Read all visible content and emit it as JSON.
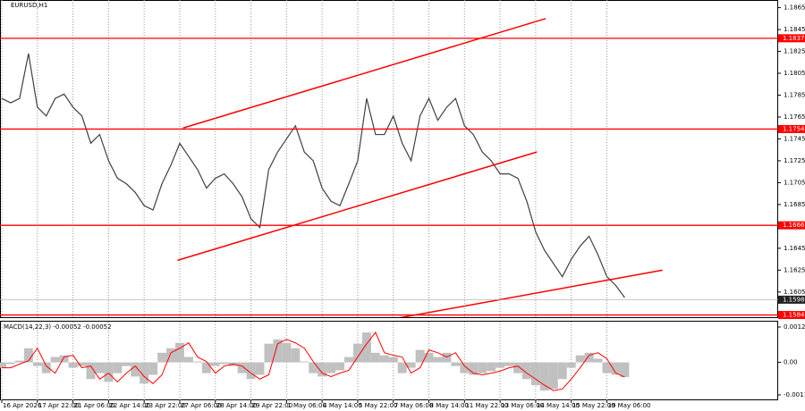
{
  "chart_data": [
    {
      "type": "line",
      "title": "EURUSD,H1",
      "x": [
        0,
        8,
        16,
        24,
        32,
        40,
        48,
        56,
        64,
        72,
        80,
        88,
        96,
        104,
        112,
        120,
        128,
        136,
        144,
        152,
        160,
        168,
        176,
        184,
        192,
        200,
        208,
        216,
        224,
        232,
        240,
        248,
        256,
        264,
        272,
        280,
        288,
        296,
        304,
        312,
        320,
        328,
        336,
        344,
        352,
        360,
        368,
        376,
        384,
        392,
        400,
        408,
        416,
        424,
        432,
        440,
        448,
        456,
        464,
        472,
        480,
        488,
        496,
        504,
        512,
        520,
        528,
        536,
        544,
        552,
        560
      ],
      "series": [
        {
          "color": "#404040",
          "values": [
            1.1782,
            1.1778,
            1.1782,
            1.1823,
            1.1774,
            1.1766,
            1.1782,
            1.1786,
            1.1774,
            1.1766,
            1.1741,
            1.1749,
            1.1725,
            1.1709,
            1.1704,
            1.1696,
            1.1684,
            1.168,
            1.1704,
            1.1721,
            1.1741,
            1.1729,
            1.1717,
            1.17,
            1.1709,
            1.1713,
            1.1704,
            1.1692,
            1.1672,
            1.1664,
            1.1717,
            1.1733,
            1.1745,
            1.1757,
            1.1733,
            1.1725,
            1.17,
            1.1688,
            1.1684,
            1.1704,
            1.1725,
            1.1782,
            1.1749,
            1.1749,
            1.1766,
            1.1741,
            1.1725,
            1.1766,
            1.1782,
            1.1762,
            1.1774,
            1.1782,
            1.1757,
            1.1749,
            1.1733,
            1.1725,
            1.1713,
            1.1713,
            1.1709,
            1.1688,
            1.166,
            1.1643,
            1.1631,
            1.1619,
            1.1635,
            1.1647,
            1.1656,
            1.1639,
            1.1619,
            1.1611,
            1.16
          ]
        }
      ],
      "xlim": [
        0,
        698
      ],
      "ylim": [
        1.1582,
        1.1872
      ],
      "yticks": [
        1.1865,
        1.1845,
        1.1825,
        1.1805,
        1.1785,
        1.1765,
        1.1745,
        1.1725,
        1.1705,
        1.1685,
        1.1665,
        1.1645,
        1.1625,
        1.1605
      ],
      "xticks": [
        {
          "value": 0,
          "label": "16 Apr 2026"
        },
        {
          "value": 32,
          "label": "17 Apr 22:00"
        },
        {
          "value": 64,
          "label": "21 Apr 06:00"
        },
        {
          "value": 96,
          "label": "22 Apr 14:00"
        },
        {
          "value": 128,
          "label": "23 Apr 22:00"
        },
        {
          "value": 160,
          "label": "27 Apr 06:00"
        },
        {
          "value": 192,
          "label": "28 Apr 14:00"
        },
        {
          "value": 224,
          "label": "29 Apr 22:00"
        },
        {
          "value": 256,
          "label": "1 May 06:00"
        },
        {
          "value": 288,
          "label": "4 May 14:00"
        },
        {
          "value": 320,
          "label": "5 May 22:00"
        },
        {
          "value": 352,
          "label": "7 May 06:00"
        },
        {
          "value": 384,
          "label": "8 May 14:00"
        },
        {
          "value": 416,
          "label": "11 May 22:00"
        },
        {
          "value": 448,
          "label": "13 May 06:00"
        },
        {
          "value": 480,
          "label": "14 May 14:00"
        },
        {
          "value": 512,
          "label": "15 May 22:00"
        },
        {
          "value": 544,
          "label": "19 May 06:00"
        }
      ],
      "grid": true,
      "levels": [
        {
          "value": 1.1837,
          "color": "#ff0000"
        },
        {
          "value": 1.1754,
          "color": "#ff0000"
        },
        {
          "value": 1.1666,
          "color": "#ff0000"
        },
        {
          "value": 1.1584,
          "color": "#ff0000"
        }
      ],
      "current_price": 1.1598,
      "trendlines": [
        {
          "x": [
            163,
            489
          ],
          "y": [
            1.1755,
            1.1855
          ],
          "color": "#ff0000"
        },
        {
          "x": [
            158,
            481
          ],
          "y": [
            1.1634,
            1.1733
          ],
          "color": "#ff0000"
        },
        {
          "x": [
            350,
            594
          ],
          "y": [
            1.158,
            1.1625
          ],
          "color": "#ff0000"
        }
      ]
    },
    {
      "type": "macd",
      "title": "MACD(14,22,3) -0.00052 -0.00052",
      "x": [
        0,
        8,
        16,
        24,
        32,
        40,
        48,
        56,
        64,
        72,
        80,
        88,
        96,
        104,
        112,
        120,
        128,
        136,
        144,
        152,
        160,
        168,
        176,
        184,
        192,
        200,
        208,
        216,
        224,
        232,
        240,
        248,
        256,
        264,
        272,
        280,
        288,
        296,
        304,
        312,
        320,
        328,
        336,
        344,
        352,
        360,
        368,
        376,
        384,
        392,
        400,
        408,
        416,
        424,
        432,
        440,
        448,
        456,
        464,
        472,
        480,
        488,
        496,
        504,
        512,
        520,
        528,
        536,
        544,
        552,
        560
      ],
      "series": [
        {
          "color": "#c0c0c0",
          "values": [
            -0.00019,
            -6e-05,
            6e-05,
            0.0005,
            -0.00013,
            -0.00038,
            0.00019,
            0.00025,
            -0.00019,
            -0.00013,
            -0.00059,
            -0.00038,
            -0.00069,
            -0.00038,
            -0.00013,
            -0.0005,
            -0.00075,
            -0.00044,
            0.00034,
            0.0005,
            0.00069,
            0.00019,
            3e-05,
            -0.00038,
            -0.00013,
            -6e-05,
            -0.00013,
            -0.00038,
            -0.00059,
            -0.00044,
            0.00066,
            0.00081,
            0.00069,
            0.0005,
            3e-05,
            -0.00038,
            -0.0005,
            -0.00038,
            -0.00028,
            0.00019,
            0.00066,
            0.00106,
            0.00034,
            0.00025,
            0.00019,
            -0.00038,
            -0.00019,
            0.00044,
            0.00034,
            0.00019,
            0.00034,
            -0.00013,
            -0.00038,
            -0.00044,
            -0.00038,
            -0.00031,
            -0.00019,
            -0.00013,
            -0.00038,
            -0.00059,
            -0.00081,
            -0.001,
            -0.00094,
            -0.00059,
            -0.00019,
            0.00025,
            0.00034,
            0.00013,
            -0.00038,
            -0.00044,
            -0.00052
          ]
        },
        {
          "color": "#ff0000",
          "values": [
            -0.00019,
            -0.00019,
            -6e-05,
            6e-05,
            0.0005,
            -0.00013,
            -0.00038,
            0.00019,
            0.00025,
            -0.00019,
            -0.00013,
            -0.00059,
            -0.00038,
            -0.00069,
            -0.00038,
            -0.00013,
            -0.0005,
            -0.00075,
            -0.00044,
            0.00034,
            0.0005,
            0.00069,
            0.00019,
            3e-05,
            -0.00038,
            -0.00013,
            -6e-05,
            -0.00013,
            -0.00038,
            -0.00059,
            -0.00044,
            0.00066,
            0.00081,
            0.00069,
            0.0005,
            3e-05,
            -0.00038,
            -0.0005,
            -0.00038,
            -0.00028,
            0.00019,
            0.00066,
            0.00106,
            0.00034,
            0.00025,
            0.00019,
            -0.00038,
            -0.00019,
            0.00044,
            0.00034,
            0.00019,
            0.00034,
            -0.00013,
            -0.00038,
            -0.00044,
            -0.00038,
            -0.00031,
            -0.00019,
            -0.00013,
            -0.00038,
            -0.00059,
            -0.00081,
            -0.001,
            -0.00094,
            -0.00059,
            -0.00019,
            0.00025,
            0.00034,
            0.00013,
            -0.00038,
            -0.00052
          ]
        }
      ],
      "xlim": [
        0,
        698
      ],
      "ylim": [
        -0.00134,
        0.00144
      ],
      "yticks": [
        0.00125,
        {
          "value": 0,
          "label": "0.00"
        },
        -0.00115
      ]
    }
  ]
}
